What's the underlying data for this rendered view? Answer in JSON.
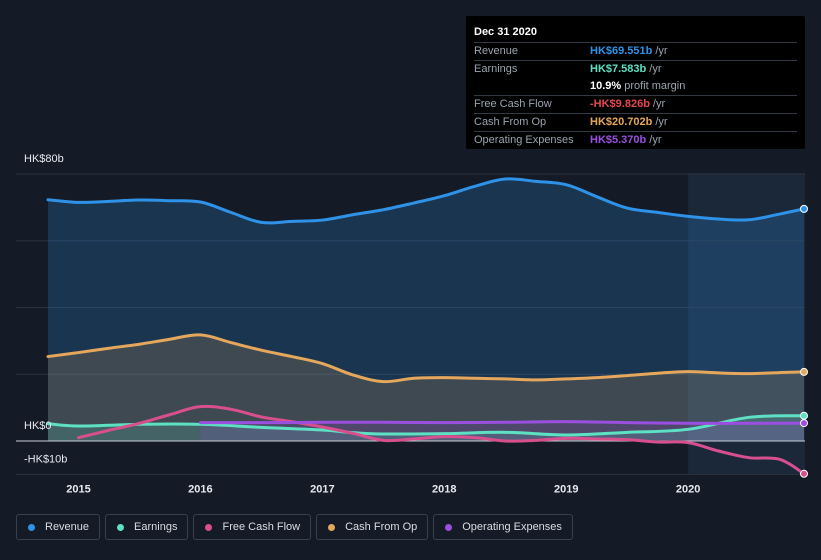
{
  "chart_data": {
    "type": "area",
    "currency_prefix": "HK$",
    "y_tick_labels": [
      "HK$80b",
      "HK$0",
      "-HK$10b"
    ],
    "ylim": [
      -10,
      80
    ],
    "xlim": [
      2014.75,
      2020.95
    ],
    "x_tick_labels": [
      "2015",
      "2016",
      "2017",
      "2018",
      "2019",
      "2020"
    ],
    "x_ticks": [
      2015,
      2016,
      2017,
      2018,
      2019,
      2020
    ],
    "highlight_from": 2020.0,
    "series": [
      {
        "name": "Revenue",
        "color": "#2e93e8",
        "fill": true,
        "x": [
          2014.75,
          2015.0,
          2015.25,
          2015.5,
          2015.75,
          2016.0,
          2016.25,
          2016.5,
          2016.75,
          2017.0,
          2017.25,
          2017.5,
          2017.75,
          2018.0,
          2018.25,
          2018.5,
          2018.75,
          2019.0,
          2019.25,
          2019.5,
          2019.75,
          2020.0,
          2020.25,
          2020.5,
          2020.75,
          2020.95
        ],
        "values": [
          72.3,
          71.5,
          71.8,
          72.2,
          72.0,
          71.6,
          68.5,
          65.5,
          65.8,
          66.2,
          67.8,
          69.3,
          71.3,
          73.5,
          76.3,
          78.5,
          77.8,
          76.8,
          73.2,
          69.8,
          68.5,
          67.3,
          66.5,
          66.3,
          68.0,
          69.551
        ]
      },
      {
        "name": "Earnings",
        "color": "#5ee0c2",
        "fill": true,
        "x": [
          2014.75,
          2015.0,
          2015.5,
          2016.0,
          2016.5,
          2017.0,
          2017.25,
          2017.5,
          2018.0,
          2018.5,
          2019.0,
          2019.5,
          2020.0,
          2020.5,
          2020.95
        ],
        "values": [
          5.2,
          4.5,
          5.0,
          5.0,
          4.1,
          3.3,
          2.5,
          2.1,
          2.2,
          2.6,
          1.8,
          2.6,
          3.5,
          7.1,
          7.583
        ]
      },
      {
        "name": "Free Cash Flow",
        "color": "#d84f8e",
        "fill": false,
        "x": [
          2015.0,
          2015.25,
          2015.5,
          2015.75,
          2016.0,
          2016.25,
          2016.5,
          2016.75,
          2017.0,
          2017.25,
          2017.5,
          2017.75,
          2018.0,
          2018.25,
          2018.5,
          2018.75,
          2019.0,
          2019.25,
          2019.5,
          2019.75,
          2020.0,
          2020.25,
          2020.5,
          2020.75,
          2020.95
        ],
        "values": [
          1.0,
          3.2,
          5.3,
          7.9,
          10.3,
          9.5,
          7.2,
          5.8,
          4.2,
          2.3,
          0.2,
          0.6,
          1.3,
          1.0,
          0.0,
          0.2,
          0.8,
          0.6,
          0.4,
          -0.3,
          -0.5,
          -3.0,
          -5.0,
          -5.5,
          -9.826
        ]
      },
      {
        "name": "Cash From Op",
        "color": "#e5a75c",
        "fill": true,
        "x": [
          2014.75,
          2015.0,
          2015.25,
          2015.5,
          2015.75,
          2016.0,
          2016.25,
          2016.5,
          2016.75,
          2017.0,
          2017.25,
          2017.5,
          2017.75,
          2018.0,
          2018.25,
          2018.5,
          2018.75,
          2019.0,
          2019.25,
          2019.5,
          2019.75,
          2020.0,
          2020.25,
          2020.5,
          2020.75,
          2020.95
        ],
        "values": [
          25.3,
          26.5,
          27.8,
          29.0,
          30.5,
          31.8,
          29.5,
          27.2,
          25.3,
          23.2,
          19.8,
          17.8,
          18.8,
          19.0,
          18.8,
          18.6,
          18.3,
          18.6,
          19.0,
          19.6,
          20.3,
          20.8,
          20.4,
          20.2,
          20.5,
          20.702
        ]
      },
      {
        "name": "Operating Expenses",
        "color": "#9b4fe0",
        "fill": true,
        "x": [
          2016.0,
          2016.5,
          2017.0,
          2017.5,
          2018.0,
          2018.5,
          2019.0,
          2019.5,
          2020.0,
          2020.5,
          2020.95
        ],
        "values": [
          5.5,
          5.5,
          5.6,
          5.6,
          5.5,
          5.6,
          5.8,
          5.5,
          5.3,
          5.3,
          5.37
        ]
      }
    ]
  },
  "tooltip": {
    "date": "Dec 31 2020",
    "rows": [
      {
        "label": "Revenue",
        "value": "HK$69.551b",
        "unit": "/yr",
        "color": "#2e93e8"
      },
      {
        "label": "Earnings",
        "value": "HK$7.583b",
        "unit": "/yr",
        "color": "#5ee0c2"
      },
      {
        "label": "",
        "value": "10.9%",
        "unit": "profit margin",
        "color": "#ffffff"
      },
      {
        "label": "Free Cash Flow",
        "value": "-HK$9.826b",
        "unit": "/yr",
        "color": "#e5484d"
      },
      {
        "label": "Cash From Op",
        "value": "HK$20.702b",
        "unit": "/yr",
        "color": "#e5a75c"
      },
      {
        "label": "Operating Expenses",
        "value": "HK$5.370b",
        "unit": "/yr",
        "color": "#9b4fe0"
      }
    ]
  },
  "legend": [
    {
      "label": "Revenue",
      "color": "#2e93e8"
    },
    {
      "label": "Earnings",
      "color": "#5ee0c2"
    },
    {
      "label": "Free Cash Flow",
      "color": "#d84f8e"
    },
    {
      "label": "Cash From Op",
      "color": "#e5a75c"
    },
    {
      "label": "Operating Expenses",
      "color": "#9b4fe0"
    }
  ]
}
